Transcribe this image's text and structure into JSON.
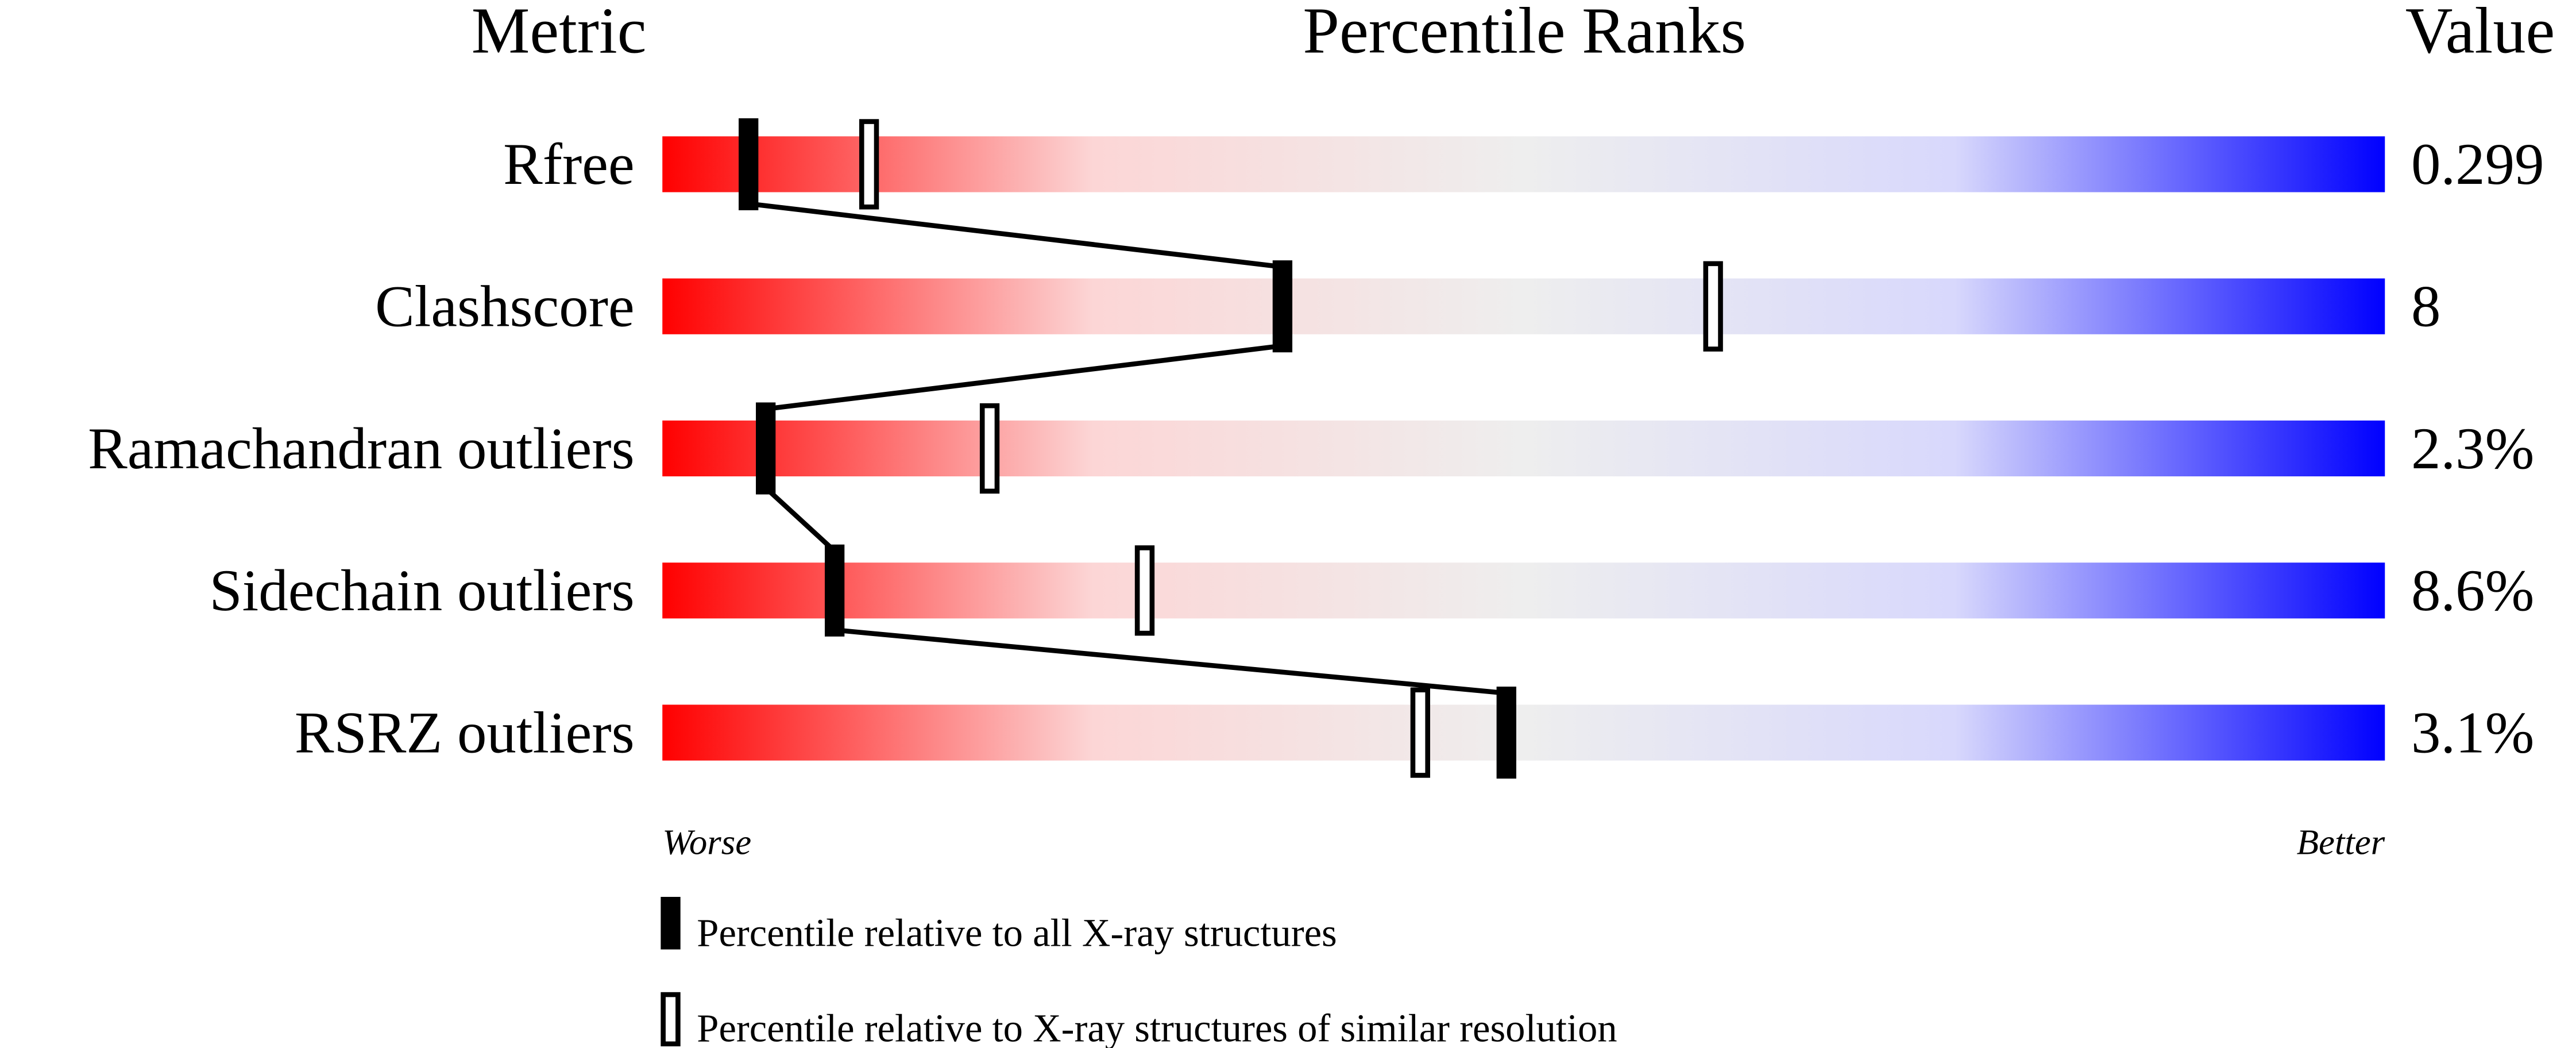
{
  "chart_data": {
    "type": "percentile-slider",
    "headers": {
      "metric": "Metric",
      "ranks": "Percentile Ranks",
      "value": "Value"
    },
    "xlim": [
      0,
      100
    ],
    "axis_labels": {
      "left": "Worse",
      "right": "Better"
    },
    "gradient_colors": [
      "#ff0000",
      "#fcd6d6",
      "#eeeeee",
      "#d8d8fc",
      "#0000ff"
    ],
    "metrics": [
      {
        "name": "Rfree",
        "value": "0.299",
        "percentile_all": 5,
        "percentile_similar": 12
      },
      {
        "name": "Clashscore",
        "value": "8",
        "percentile_all": 36,
        "percentile_similar": 61
      },
      {
        "name": "Ramachandran outliers",
        "value": "2.3%",
        "percentile_all": 6,
        "percentile_similar": 19
      },
      {
        "name": "Sidechain outliers",
        "value": "8.6%",
        "percentile_all": 10,
        "percentile_similar": 28
      },
      {
        "name": "RSRZ outliers",
        "value": "3.1%",
        "percentile_all": 49,
        "percentile_similar": 44
      }
    ],
    "legend": [
      {
        "marker": "filled",
        "label": "Percentile relative to all X-ray structures"
      },
      {
        "marker": "open",
        "label": "Percentile relative to X-ray structures of similar resolution"
      }
    ]
  }
}
